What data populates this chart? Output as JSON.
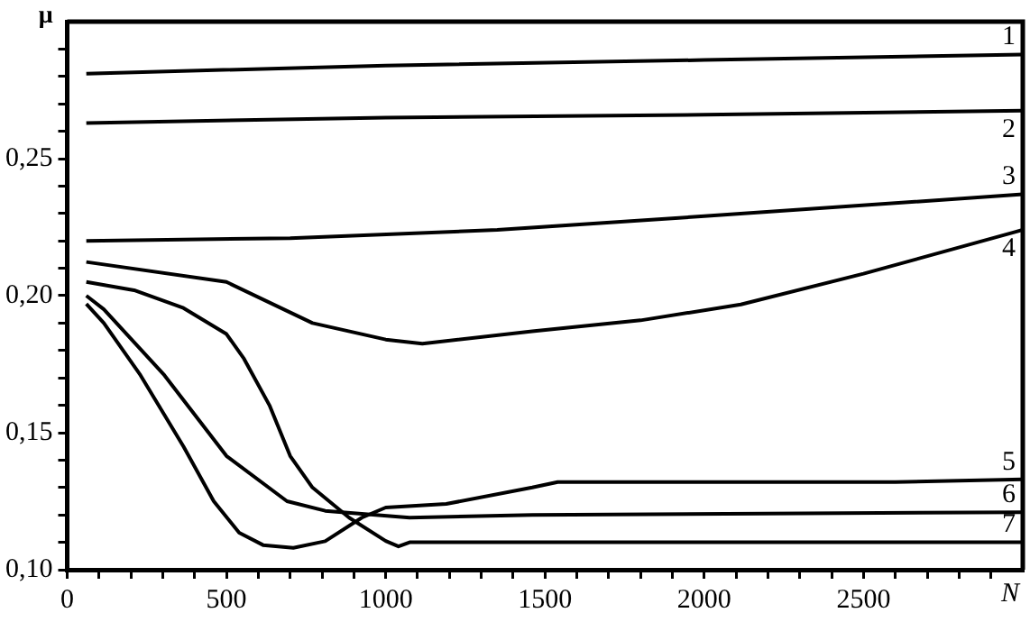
{
  "chart_data": {
    "type": "line",
    "xlabel": "N",
    "ylabel": "μ",
    "xlim": [
      0,
      3000
    ],
    "ylim": [
      0.1,
      0.3
    ],
    "xticks": [
      0,
      {
        "value": 100,
        "label": null
      },
      {
        "value": 200,
        "label": null
      },
      {
        "value": 300,
        "label": null
      },
      {
        "value": 400,
        "label": null
      },
      500,
      {
        "value": 600,
        "label": null
      },
      {
        "value": 700,
        "label": null
      },
      {
        "value": 800,
        "label": null
      },
      {
        "value": 900,
        "label": null
      },
      1000,
      {
        "value": 1100,
        "label": null
      },
      {
        "value": 1200,
        "label": null
      },
      {
        "value": 1300,
        "label": null
      },
      {
        "value": 1400,
        "label": null
      },
      1500,
      {
        "value": 1600,
        "label": null
      },
      {
        "value": 1700,
        "label": null
      },
      {
        "value": 1800,
        "label": null
      },
      {
        "value": 1900,
        "label": null
      },
      2000,
      {
        "value": 2100,
        "label": null
      },
      {
        "value": 2200,
        "label": null
      },
      {
        "value": 2300,
        "label": null
      },
      {
        "value": 2400,
        "label": null
      },
      2500,
      {
        "value": 2600,
        "label": null
      },
      {
        "value": 2700,
        "label": null
      },
      {
        "value": 2800,
        "label": null
      },
      {
        "value": 2900,
        "label": null
      }
    ],
    "yticks": [
      {
        "value": 0.1,
        "label": "0,10"
      },
      {
        "value": 0.11,
        "label": null
      },
      {
        "value": 0.12,
        "label": null
      },
      {
        "value": 0.13,
        "label": null
      },
      {
        "value": 0.14,
        "label": null
      },
      {
        "value": 0.15,
        "label": "0,15"
      },
      {
        "value": 0.16,
        "label": null
      },
      {
        "value": 0.17,
        "label": null
      },
      {
        "value": 0.18,
        "label": null
      },
      {
        "value": 0.19,
        "label": null
      },
      {
        "value": 0.2,
        "label": "0,20"
      },
      {
        "value": 0.21,
        "label": null
      },
      {
        "value": 0.22,
        "label": null
      },
      {
        "value": 0.23,
        "label": null
      },
      {
        "value": 0.24,
        "label": null
      },
      {
        "value": 0.25,
        "label": "0,25"
      },
      {
        "value": 0.26,
        "label": null
      },
      {
        "value": 0.27,
        "label": null
      },
      {
        "value": 0.28,
        "label": null
      },
      {
        "value": 0.29,
        "label": null
      }
    ],
    "grid": false,
    "legend": false,
    "marker": "none",
    "line_style": "solid",
    "series": [
      {
        "name": "1",
        "color": "#000000",
        "x": [
          60,
          1000,
          2000,
          3000
        ],
        "values": [
          0.281,
          0.284,
          0.286,
          0.288
        ]
      },
      {
        "name": "2",
        "color": "#000000",
        "x": [
          60,
          1000,
          2000,
          3000
        ],
        "values": [
          0.263,
          0.265,
          0.266,
          0.2675
        ]
      },
      {
        "name": "3",
        "color": "#000000",
        "x": [
          60,
          700,
          1350,
          2000,
          3000
        ],
        "values": [
          0.22,
          0.221,
          0.224,
          0.229,
          0.237
        ]
      },
      {
        "name": "4",
        "color": "#000000",
        "x": [
          60,
          500,
          770,
          1000,
          1115,
          1460,
          1800,
          2115,
          2500,
          3000
        ],
        "values": [
          0.2123,
          0.205,
          0.19,
          0.184,
          0.1825,
          0.187,
          0.191,
          0.1968,
          0.208,
          0.224
        ]
      },
      {
        "name": "5",
        "color": "#000000",
        "x": [
          60,
          115,
          230,
          365,
          460,
          540,
          615,
          710,
          810,
          925,
          1000,
          1190,
          1460,
          1540,
          2600,
          3000
        ],
        "values": [
          0.197,
          0.19,
          0.171,
          0.145,
          0.125,
          0.1135,
          0.109,
          0.108,
          0.1104,
          0.119,
          0.1227,
          0.124,
          0.13,
          0.132,
          0.132,
          0.133
        ]
      },
      {
        "name": "6",
        "color": "#000000",
        "x": [
          60,
          115,
          305,
          500,
          690,
          810,
          1075,
          1460,
          3000
        ],
        "values": [
          0.2,
          0.195,
          0.171,
          0.1415,
          0.125,
          0.1215,
          0.119,
          0.12,
          0.121
        ]
      },
      {
        "name": "7",
        "color": "#000000",
        "x": [
          60,
          210,
          365,
          500,
          555,
          635,
          700,
          770,
          885,
          1000,
          1040,
          1075,
          3000
        ],
        "values": [
          0.205,
          0.202,
          0.1955,
          0.186,
          0.177,
          0.16,
          0.1415,
          0.13,
          0.119,
          0.1105,
          0.1085,
          0.11,
          0.11
        ]
      }
    ]
  }
}
